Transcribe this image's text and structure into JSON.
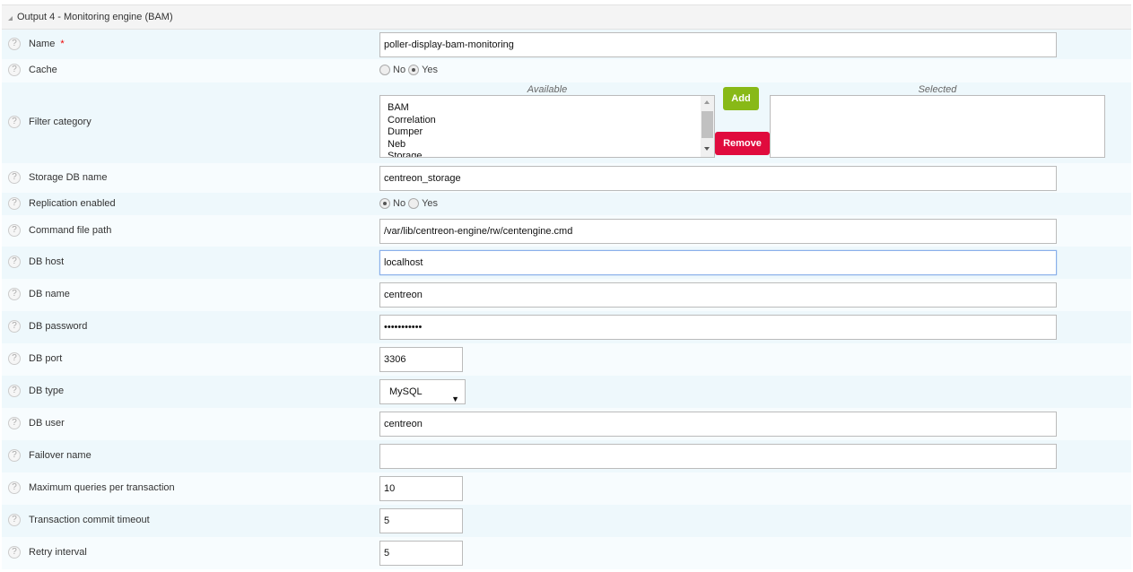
{
  "section": {
    "title": "Output 4 - Monitoring engine (BAM)"
  },
  "fields": [
    {
      "label": "Name",
      "required": true,
      "type": "text",
      "value": "poller-display-bam-monitoring"
    },
    {
      "label": "Cache",
      "type": "radio",
      "options": [
        "No",
        "Yes"
      ],
      "selected": "Yes"
    },
    {
      "label": "Filter category",
      "type": "multiselect",
      "available_label": "Available",
      "selected_label": "Selected",
      "available": [
        "BAM",
        "Correlation",
        "Dumper",
        "Neb",
        "Storage"
      ],
      "selected": [],
      "add_label": "Add",
      "remove_label": "Remove"
    },
    {
      "label": "Storage DB name",
      "type": "text",
      "value": "centreon_storage"
    },
    {
      "label": "Replication enabled",
      "type": "radio",
      "options": [
        "No",
        "Yes"
      ],
      "selected": "No"
    },
    {
      "label": "Command file path",
      "type": "text",
      "value": "/var/lib/centreon-engine/rw/centengine.cmd"
    },
    {
      "label": "DB host",
      "type": "text",
      "value": "localhost",
      "focused": true
    },
    {
      "label": "DB name",
      "type": "text",
      "value": "centreon"
    },
    {
      "label": "DB password",
      "type": "text",
      "value": "•••••••••••"
    },
    {
      "label": "DB port",
      "type": "short",
      "value": "3306"
    },
    {
      "label": "DB type",
      "type": "select",
      "value": "MySQL"
    },
    {
      "label": "DB user",
      "type": "text",
      "value": "centreon"
    },
    {
      "label": "Failover name",
      "type": "text",
      "value": ""
    },
    {
      "label": "Maximum queries per transaction",
      "type": "short",
      "value": "10"
    },
    {
      "label": "Transaction commit timeout",
      "type": "short",
      "value": "5"
    },
    {
      "label": "Retry interval",
      "type": "short",
      "value": "5"
    }
  ],
  "colors": {
    "add": "#88b917",
    "remove": "#e00b3d",
    "row_alt": "#eef8fc"
  }
}
